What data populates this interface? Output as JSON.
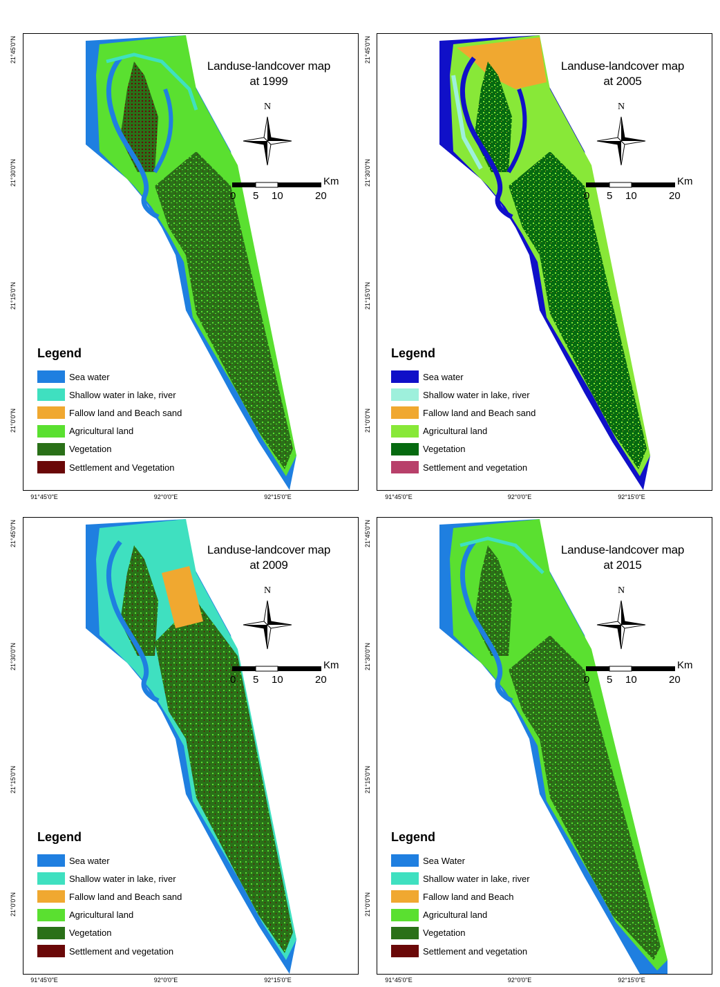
{
  "colors": {
    "sea": "#1f7fe0",
    "sea_2005": "#1010c8",
    "shallow": "#3fe0c0",
    "shallow_2005": "#9ef0dc",
    "fallow": "#f0a830",
    "agri": "#5ae030",
    "agri_2005": "#88e838",
    "veg": "#2a7018",
    "veg_2005": "#066a10",
    "settle": "#6a0808",
    "settle_2005": "#b8406a"
  },
  "panels": [
    {
      "id": "1999",
      "title_line1": "Landuse-landcover map",
      "title_line2": "at 1999",
      "north": "N",
      "scale": {
        "unit": "Km",
        "ticks": [
          "0",
          "5",
          "10",
          "20"
        ]
      },
      "legend_title": "Legend",
      "legend": [
        {
          "label": "Sea water",
          "color": "#1f7fe0"
        },
        {
          "label": "Shallow water in lake, river",
          "color": "#3fe0c0"
        },
        {
          "label": "Fallow land and Beach sand",
          "color": "#f0a830"
        },
        {
          "label": "Agricultural land",
          "color": "#5ae030"
        },
        {
          "label": "Vegetation",
          "color": "#2a7018"
        },
        {
          "label": "Settlement and Vegetation",
          "color": "#6a0808"
        }
      ]
    },
    {
      "id": "2005",
      "title_line1": "Landuse-landcover map",
      "title_line2": "at 2005",
      "north": "N",
      "scale": {
        "unit": "Km",
        "ticks": [
          "0",
          "5",
          "10",
          "20"
        ]
      },
      "legend_title": "Legend",
      "legend": [
        {
          "label": "Sea water",
          "color": "#1010c8"
        },
        {
          "label": "Shallow water in lake, river",
          "color": "#9ef0dc"
        },
        {
          "label": "Fallow land and Beach sand",
          "color": "#f0a830"
        },
        {
          "label": "Agricultural land",
          "color": "#88e838"
        },
        {
          "label": "Vegetation",
          "color": "#066a10"
        },
        {
          "label": "Settlement and vegetation",
          "color": "#b8406a"
        }
      ]
    },
    {
      "id": "2009",
      "title_line1": "Landuse-landcover map",
      "title_line2": "at 2009",
      "north": "N",
      "scale": {
        "unit": "Km",
        "ticks": [
          "0",
          "5",
          "10",
          "20"
        ]
      },
      "legend_title": "Legend",
      "legend": [
        {
          "label": "Sea water",
          "color": "#1f7fe0"
        },
        {
          "label": "Shallow water in lake, river",
          "color": "#3fe0c0"
        },
        {
          "label": "Fallow land and Beach sand",
          "color": "#f0a830"
        },
        {
          "label": "Agricultural land",
          "color": "#5ae030"
        },
        {
          "label": "Vegetation",
          "color": "#2a7018"
        },
        {
          "label": "Settlement and vegetation",
          "color": "#6a0808"
        }
      ]
    },
    {
      "id": "2015",
      "title_line1": "Landuse-landcover map",
      "title_line2": "at 2015",
      "north": "N",
      "scale": {
        "unit": "Km",
        "ticks": [
          "0",
          "5",
          "10",
          "20"
        ]
      },
      "legend_title": "Legend",
      "legend": [
        {
          "label": "Sea Water",
          "color": "#1f7fe0"
        },
        {
          "label": "Shallow water in lake, river",
          "color": "#3fe0c0"
        },
        {
          "label": "Fallow land and Beach",
          "color": "#f0a830"
        },
        {
          "label": "Agricultural land",
          "color": "#5ae030"
        },
        {
          "label": "Vegetation",
          "color": "#2a7018"
        },
        {
          "label": "Settlement and vegetation",
          "color": "#6a0808"
        }
      ]
    }
  ],
  "axes": {
    "lat_labels": [
      "21°45'0\"N",
      "21°30'0\"N",
      "21°15'0\"N",
      "21°0'0\"N"
    ],
    "lon_labels": [
      "91°45'0\"E",
      "92°0'0\"E",
      "92°15'0\"E"
    ]
  }
}
